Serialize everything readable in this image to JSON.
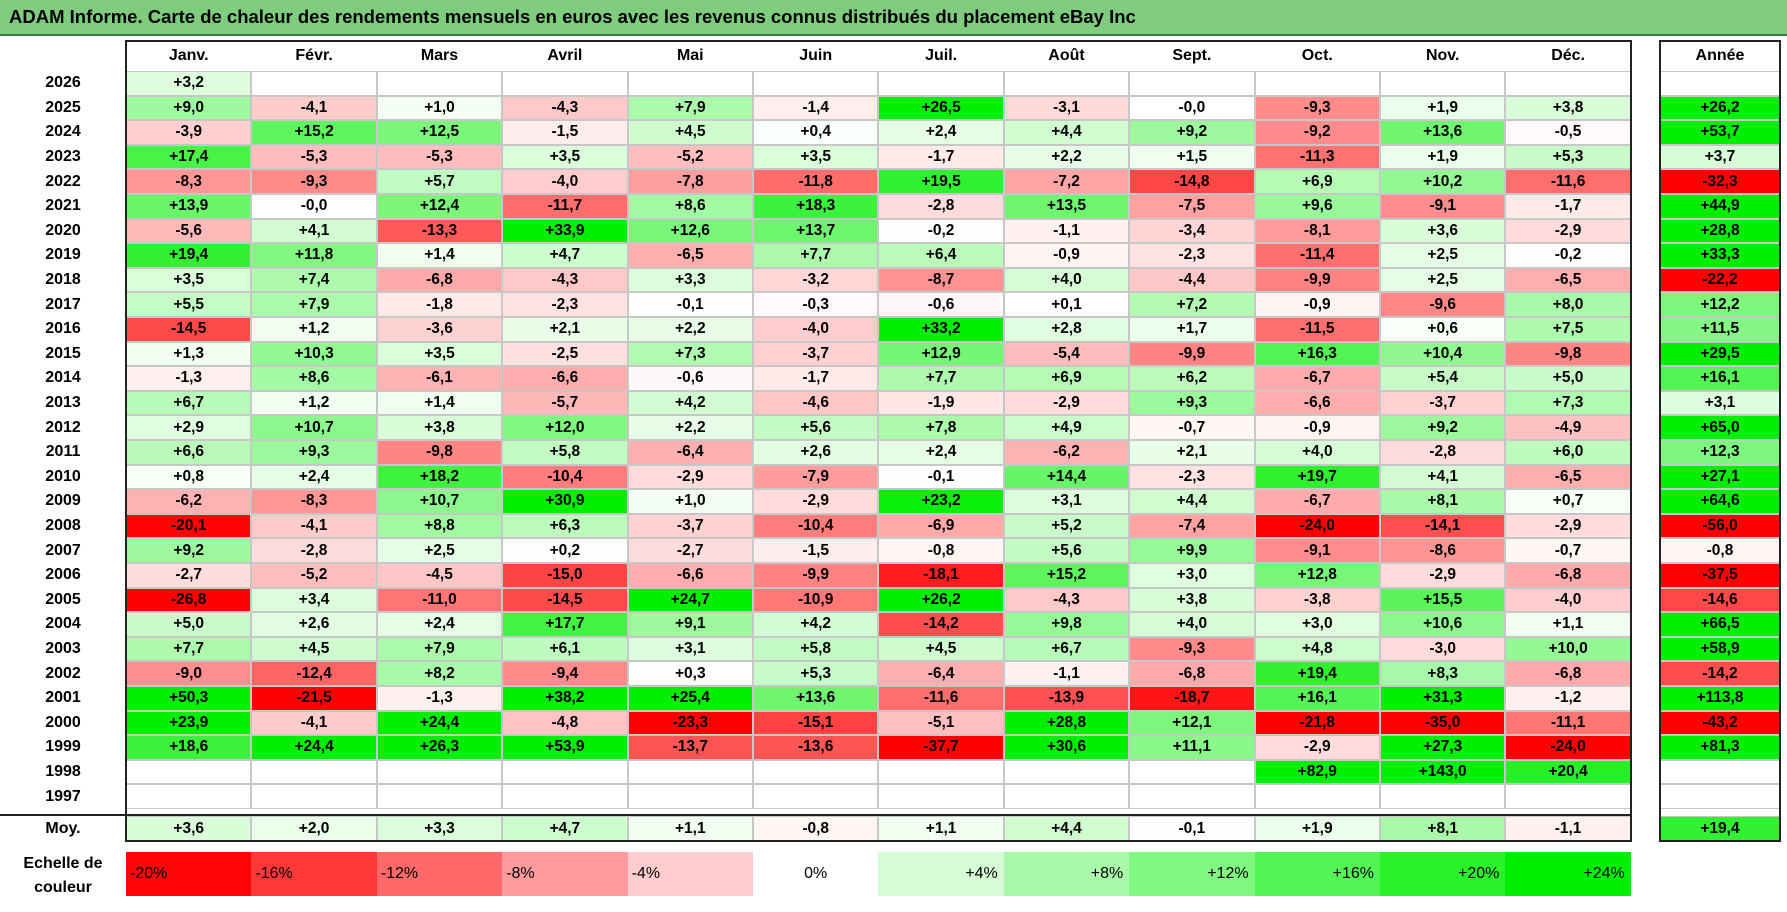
{
  "title": "ADAM Informe. Carte de chaleur des rendements mensuels en euros avec les revenus connus distribués du placement eBay Inc",
  "colors": {
    "title_bg": "#7fcc7f",
    "max_red": "#ff0000",
    "max_green": "#00ee00",
    "neutral": "#ffffff"
  },
  "chart_data": {
    "type": "heatmap",
    "title": "ADAM Informe. Carte de chaleur des rendements mensuels en euros avec les revenus connus distribués du placement eBay Inc",
    "months": [
      "Janv.",
      "Févr.",
      "Mars",
      "Avril",
      "Mai",
      "Juin",
      "Juil.",
      "Août",
      "Sept.",
      "Oct.",
      "Nov.",
      "Déc."
    ],
    "year_header": "Année",
    "rows": [
      {
        "year": "2026",
        "values": [
          "+3,2",
          "",
          "",
          "",
          "",
          "",
          "",
          "",
          "",
          "",
          "",
          ""
        ],
        "annual": ""
      },
      {
        "year": "2025",
        "values": [
          "+9,0",
          "-4,1",
          "+1,0",
          "-4,3",
          "+7,9",
          "-1,4",
          "+26,5",
          "-3,1",
          "-0,0",
          "-9,3",
          "+1,9",
          "+3,8"
        ],
        "annual": "+26,2"
      },
      {
        "year": "2024",
        "values": [
          "-3,9",
          "+15,2",
          "+12,5",
          "-1,5",
          "+4,5",
          "+0,4",
          "+2,4",
          "+4,4",
          "+9,2",
          "-9,2",
          "+13,6",
          "-0,5"
        ],
        "annual": "+53,7"
      },
      {
        "year": "2023",
        "values": [
          "+17,4",
          "-5,3",
          "-5,3",
          "+3,5",
          "-5,2",
          "+3,5",
          "-1,7",
          "+2,2",
          "+1,5",
          "-11,3",
          "+1,9",
          "+5,3"
        ],
        "annual": "+3,7"
      },
      {
        "year": "2022",
        "values": [
          "-8,3",
          "-9,3",
          "+5,7",
          "-4,0",
          "-7,8",
          "-11,8",
          "+19,5",
          "-7,2",
          "-14,8",
          "+6,9",
          "+10,2",
          "-11,6"
        ],
        "annual": "-32,3"
      },
      {
        "year": "2021",
        "values": [
          "+13,9",
          "-0,0",
          "+12,4",
          "-11,7",
          "+8,6",
          "+18,3",
          "-2,8",
          "+13,5",
          "-7,5",
          "+9,6",
          "-9,1",
          "-1,7"
        ],
        "annual": "+44,9"
      },
      {
        "year": "2020",
        "values": [
          "-5,6",
          "+4,1",
          "-13,3",
          "+33,9",
          "+12,6",
          "+13,7",
          "-0,2",
          "-1,1",
          "-3,4",
          "-8,1",
          "+3,6",
          "-2,9"
        ],
        "annual": "+28,8"
      },
      {
        "year": "2019",
        "values": [
          "+19,4",
          "+11,8",
          "+1,4",
          "+4,7",
          "-6,5",
          "+7,7",
          "+6,4",
          "-0,9",
          "-2,3",
          "-11,4",
          "+2,5",
          "-0,2"
        ],
        "annual": "+33,3"
      },
      {
        "year": "2018",
        "values": [
          "+3,5",
          "+7,4",
          "-6,8",
          "-4,3",
          "+3,3",
          "-3,2",
          "-8,7",
          "+4,0",
          "-4,4",
          "-9,9",
          "+2,5",
          "-6,5"
        ],
        "annual": "-22,2"
      },
      {
        "year": "2017",
        "values": [
          "+5,5",
          "+7,9",
          "-1,8",
          "-2,3",
          "-0,1",
          "-0,3",
          "-0,6",
          "+0,1",
          "+7,2",
          "-0,9",
          "-9,6",
          "+8,0"
        ],
        "annual": "+12,2"
      },
      {
        "year": "2016",
        "values": [
          "-14,5",
          "+1,2",
          "-3,6",
          "+2,1",
          "+2,2",
          "-4,0",
          "+33,2",
          "+2,8",
          "+1,7",
          "-11,5",
          "+0,6",
          "+7,5"
        ],
        "annual": "+11,5"
      },
      {
        "year": "2015",
        "values": [
          "+1,3",
          "+10,3",
          "+3,5",
          "-2,5",
          "+7,3",
          "-3,7",
          "+12,9",
          "-5,4",
          "-9,9",
          "+16,3",
          "+10,4",
          "-9,8"
        ],
        "annual": "+29,5"
      },
      {
        "year": "2014",
        "values": [
          "-1,3",
          "+8,6",
          "-6,1",
          "-6,6",
          "-0,6",
          "-1,7",
          "+7,7",
          "+6,9",
          "+6,2",
          "-6,7",
          "+5,4",
          "+5,0"
        ],
        "annual": "+16,1"
      },
      {
        "year": "2013",
        "values": [
          "+6,7",
          "+1,2",
          "+1,4",
          "-5,7",
          "+4,2",
          "-4,6",
          "-1,9",
          "-2,9",
          "+9,3",
          "-6,6",
          "-3,7",
          "+7,3"
        ],
        "annual": "+3,1"
      },
      {
        "year": "2012",
        "values": [
          "+2,9",
          "+10,7",
          "+3,8",
          "+12,0",
          "+2,2",
          "+5,6",
          "+7,8",
          "+4,9",
          "-0,7",
          "-0,9",
          "+9,2",
          "-4,9"
        ],
        "annual": "+65,0"
      },
      {
        "year": "2011",
        "values": [
          "+6,6",
          "+9,3",
          "-9,8",
          "+5,8",
          "-6,4",
          "+2,6",
          "+2,4",
          "-6,2",
          "+2,1",
          "+4,0",
          "-2,8",
          "+6,0"
        ],
        "annual": "+12,3"
      },
      {
        "year": "2010",
        "values": [
          "+0,8",
          "+2,4",
          "+18,2",
          "-10,4",
          "-2,9",
          "-7,9",
          "-0,1",
          "+14,4",
          "-2,3",
          "+19,7",
          "+4,1",
          "-6,5"
        ],
        "annual": "+27,1"
      },
      {
        "year": "2009",
        "values": [
          "-6,2",
          "-8,3",
          "+10,7",
          "+30,9",
          "+1,0",
          "-2,9",
          "+23,2",
          "+3,1",
          "+4,4",
          "-6,7",
          "+8,1",
          "+0,7"
        ],
        "annual": "+64,6"
      },
      {
        "year": "2008",
        "values": [
          "-20,1",
          "-4,1",
          "+8,8",
          "+6,3",
          "-3,7",
          "-10,4",
          "-6,9",
          "+5,2",
          "-7,4",
          "-24,0",
          "-14,1",
          "-2,9"
        ],
        "annual": "-56,0"
      },
      {
        "year": "2007",
        "values": [
          "+9,2",
          "-2,8",
          "+2,5",
          "+0,2",
          "-2,7",
          "-1,5",
          "-0,8",
          "+5,6",
          "+9,9",
          "-9,1",
          "-8,6",
          "-0,7"
        ],
        "annual": "-0,8"
      },
      {
        "year": "2006",
        "values": [
          "-2,7",
          "-5,2",
          "-4,5",
          "-15,0",
          "-6,6",
          "-9,9",
          "-18,1",
          "+15,2",
          "+3,0",
          "+12,8",
          "-2,9",
          "-6,8"
        ],
        "annual": "-37,5"
      },
      {
        "year": "2005",
        "values": [
          "-26,8",
          "+3,4",
          "-11,0",
          "-14,5",
          "+24,7",
          "-10,9",
          "+26,2",
          "-4,3",
          "+3,8",
          "-3,8",
          "+15,5",
          "-4,0"
        ],
        "annual": "-14,6"
      },
      {
        "year": "2004",
        "values": [
          "+5,0",
          "+2,6",
          "+2,4",
          "+17,7",
          "+9,1",
          "+4,2",
          "-14,2",
          "+9,8",
          "+4,0",
          "+3,0",
          "+10,6",
          "+1,1"
        ],
        "annual": "+66,5"
      },
      {
        "year": "2003",
        "values": [
          "+7,7",
          "+4,5",
          "+7,9",
          "+6,1",
          "+3,1",
          "+5,8",
          "+4,5",
          "+6,7",
          "-9,3",
          "+4,8",
          "-3,0",
          "+10,0"
        ],
        "annual": "+58,9"
      },
      {
        "year": "2002",
        "values": [
          "-9,0",
          "-12,4",
          "+8,2",
          "-9,4",
          "+0,3",
          "+5,3",
          "-6,4",
          "-1,1",
          "-6,8",
          "+19,4",
          "+8,3",
          "-6,8"
        ],
        "annual": "-14,2"
      },
      {
        "year": "2001",
        "values": [
          "+50,3",
          "-21,5",
          "-1,3",
          "+38,2",
          "+25,4",
          "+13,6",
          "-11,6",
          "-13,9",
          "-18,7",
          "+16,1",
          "+31,3",
          "-1,2"
        ],
        "annual": "+113,8"
      },
      {
        "year": "2000",
        "values": [
          "+23,9",
          "-4,1",
          "+24,4",
          "-4,8",
          "-23,3",
          "-15,1",
          "-5,1",
          "+28,8",
          "+12,1",
          "-21,8",
          "-35,0",
          "-11,1"
        ],
        "annual": "-43,2"
      },
      {
        "year": "1999",
        "values": [
          "+18,6",
          "+24,4",
          "+26,3",
          "+53,9",
          "-13,7",
          "-13,6",
          "-37,7",
          "+30,6",
          "+11,1",
          "-2,9",
          "+27,3",
          "-24,0"
        ],
        "annual": "+81,3"
      },
      {
        "year": "1998",
        "values": [
          "",
          "",
          "",
          "",
          "",
          "",
          "",
          "",
          "",
          "+82,9",
          "+143,0",
          "+20,4"
        ],
        "annual": ""
      },
      {
        "year": "1997",
        "values": [
          "",
          "",
          "",
          "",
          "",
          "",
          "",
          "",
          "",
          "",
          "",
          ""
        ],
        "annual": ""
      }
    ],
    "average": {
      "label": "Moy.",
      "values": [
        "+3,6",
        "+2,0",
        "+3,3",
        "+4,7",
        "+1,1",
        "-0,8",
        "+1,1",
        "+4,4",
        "-0,1",
        "+1,9",
        "+8,1",
        "-1,1"
      ],
      "annual": "+19,4"
    },
    "scale": {
      "label_line1": "Echelle de",
      "label_line2": "couleur",
      "labels": [
        "-20%",
        "-16%",
        "-12%",
        "-8%",
        "-4%",
        "0%",
        "+4%",
        "+8%",
        "+12%",
        "+16%",
        "+20%",
        "+24%"
      ],
      "values": [
        -20,
        -16,
        -12,
        -8,
        -4,
        0,
        4,
        8,
        12,
        16,
        20,
        24
      ]
    }
  }
}
